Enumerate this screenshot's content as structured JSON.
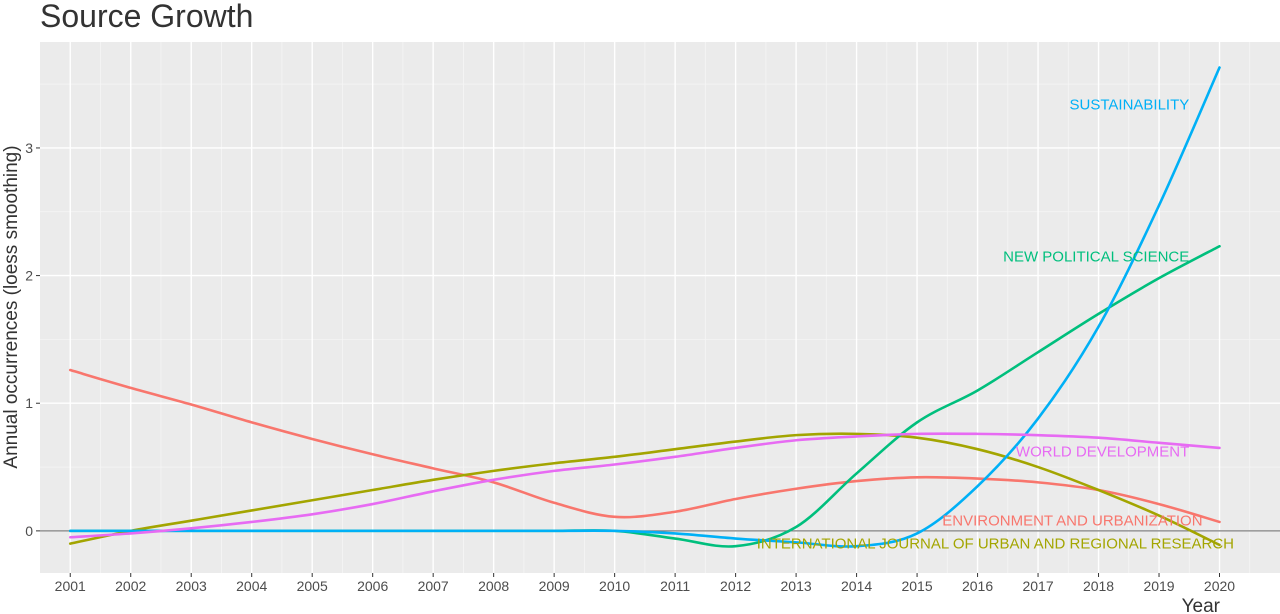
{
  "chart_data": {
    "type": "line",
    "title": "Source Growth",
    "xlabel": "Year",
    "ylabel": "Annual occurrences (loess smoothing)",
    "xlim": [
      2000.5,
      2021.0
    ],
    "ylim": [
      -0.33,
      3.83
    ],
    "x_ticks": [
      2001,
      2002,
      2003,
      2004,
      2005,
      2006,
      2007,
      2008,
      2009,
      2010,
      2011,
      2012,
      2013,
      2014,
      2015,
      2016,
      2017,
      2018,
      2019,
      2020
    ],
    "y_ticks": [
      0,
      1,
      2,
      3
    ],
    "grid": true,
    "legend": "direct labels at line ends",
    "series": [
      {
        "name": "ENVIRONMENT AND URBANIZATION",
        "color": "#F8766D",
        "x": [
          2001,
          2002,
          2003,
          2004,
          2005,
          2006,
          2007,
          2008,
          2009,
          2010,
          2011,
          2012,
          2013,
          2014,
          2015,
          2016,
          2017,
          2018,
          2019,
          2020
        ],
        "y": [
          1.26,
          1.12,
          0.99,
          0.85,
          0.72,
          0.6,
          0.49,
          0.38,
          0.22,
          0.11,
          0.15,
          0.25,
          0.33,
          0.39,
          0.42,
          0.41,
          0.38,
          0.32,
          0.21,
          0.07
        ]
      },
      {
        "name": "INTERNATIONAL JOURNAL OF URBAN AND REGIONAL RESEARCH",
        "color": "#A3A500",
        "x": [
          2001,
          2002,
          2003,
          2004,
          2005,
          2006,
          2007,
          2008,
          2009,
          2010,
          2011,
          2012,
          2013,
          2014,
          2015,
          2016,
          2017,
          2018,
          2019,
          2020
        ],
        "y": [
          -0.1,
          0.0,
          0.08,
          0.16,
          0.24,
          0.32,
          0.4,
          0.47,
          0.53,
          0.58,
          0.64,
          0.7,
          0.75,
          0.76,
          0.73,
          0.64,
          0.5,
          0.32,
          0.12,
          -0.11
        ]
      },
      {
        "name": "NEW POLITICAL SCIENCE",
        "color": "#00BF7D",
        "x": [
          2001,
          2002,
          2003,
          2004,
          2005,
          2006,
          2007,
          2008,
          2009,
          2010,
          2011,
          2012,
          2013,
          2014,
          2015,
          2016,
          2017,
          2018,
          2019,
          2020
        ],
        "y": [
          0,
          0,
          0,
          0,
          0,
          0,
          0,
          0,
          0,
          0,
          -0.06,
          -0.12,
          0.03,
          0.45,
          0.85,
          1.1,
          1.4,
          1.7,
          1.98,
          2.23
        ]
      },
      {
        "name": "SUSTAINABILITY",
        "color": "#00B0F6",
        "x": [
          2001,
          2002,
          2003,
          2004,
          2005,
          2006,
          2007,
          2008,
          2009,
          2010,
          2011,
          2012,
          2013,
          2014,
          2015,
          2016,
          2017,
          2018,
          2019,
          2020
        ],
        "y": [
          0,
          0,
          0,
          0,
          0,
          0,
          0,
          0,
          0,
          0,
          -0.02,
          -0.06,
          -0.09,
          -0.12,
          -0.02,
          0.35,
          0.88,
          1.6,
          2.55,
          3.63
        ]
      },
      {
        "name": "WORLD DEVELOPMENT",
        "color": "#E76BF3",
        "x": [
          2001,
          2002,
          2003,
          2004,
          2005,
          2006,
          2007,
          2008,
          2009,
          2010,
          2011,
          2012,
          2013,
          2014,
          2015,
          2016,
          2017,
          2018,
          2019,
          2020
        ],
        "y": [
          -0.05,
          -0.02,
          0.02,
          0.07,
          0.13,
          0.21,
          0.31,
          0.4,
          0.47,
          0.52,
          0.58,
          0.65,
          0.71,
          0.74,
          0.76,
          0.76,
          0.75,
          0.73,
          0.69,
          0.65
        ]
      }
    ]
  }
}
